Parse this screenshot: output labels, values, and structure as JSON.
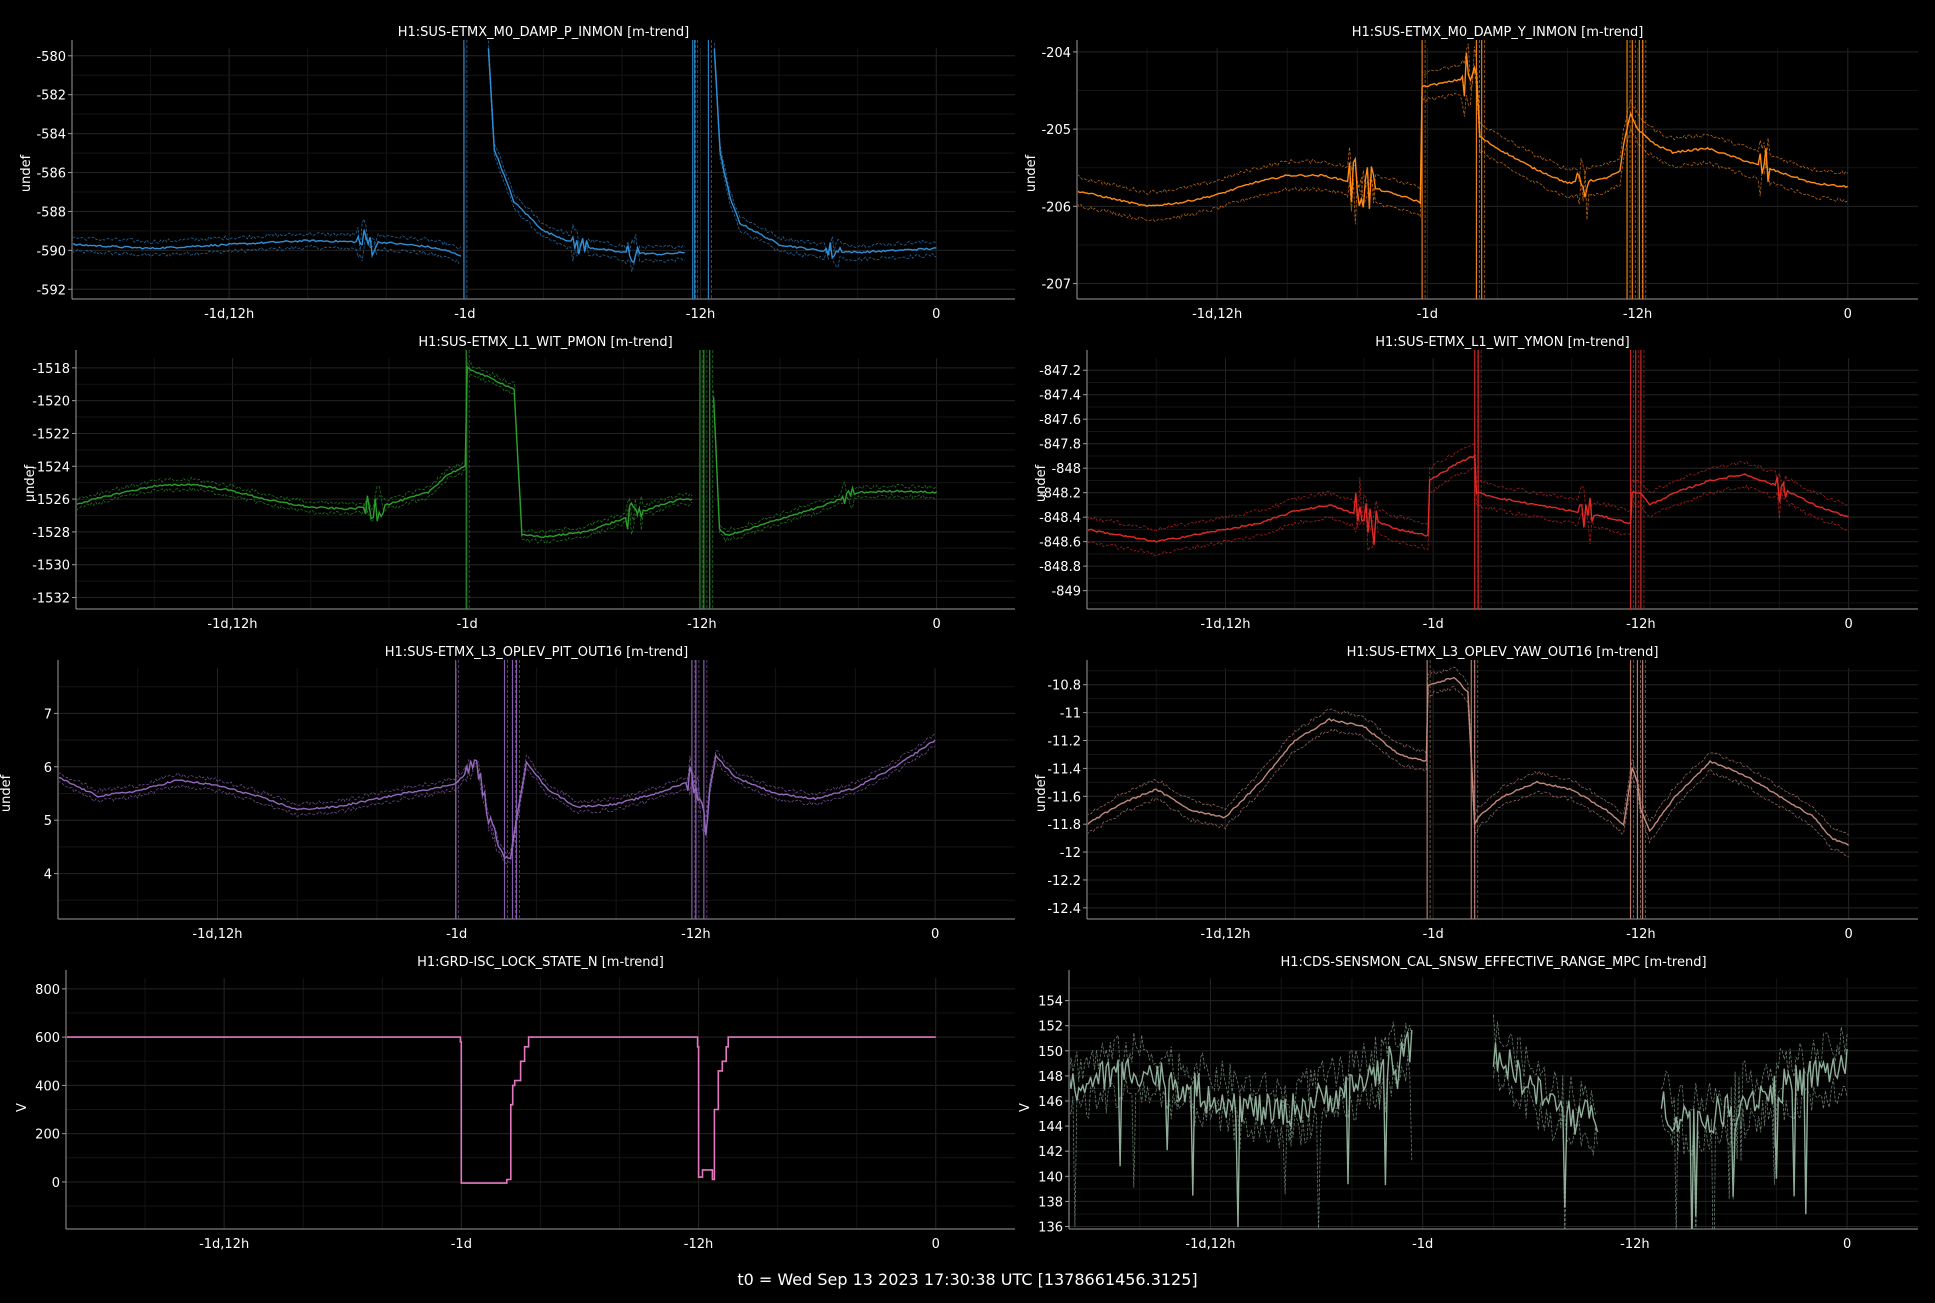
{
  "footer": "t0 = Wed Sep 13 2023 17:30:38 UTC [1378661456.3125]",
  "colors": {
    "background": "#000000",
    "grid": "#222222",
    "axis": "#9a9a9a"
  },
  "chart_data": [
    {
      "type": "line",
      "title": "H1:SUS-ETMX_M0_DAMP_P_INMON [m-trend]",
      "ylabel": "undef",
      "color": "#2f8fd6",
      "xlim": [
        -44,
        0
      ],
      "ylim": [
        -592.5,
        -579.6
      ],
      "xticks": [
        -36,
        -24,
        -12,
        0
      ],
      "xtick_labels": [
        "-1d,12h",
        "-1d",
        "-12h",
        "0"
      ],
      "yticks": [
        -580,
        -582,
        -584,
        -586,
        -588,
        -590,
        -592
      ],
      "ytick_labels": [
        "-580",
        "-582",
        "-584",
        "-586",
        "-588",
        "-590",
        "-592"
      ],
      "band": 0.35,
      "x": [
        -44,
        -40,
        -36,
        -32,
        -28,
        -26,
        -25,
        -24.1,
        -24.0,
        -22.8,
        -22.5,
        -21.5,
        -20,
        -18,
        -16,
        -14,
        -12.7,
        -12.55,
        -12.4,
        -12.3,
        -12,
        -11.3,
        -11.0,
        -10.5,
        -10,
        -8,
        -6,
        -4,
        -2,
        0
      ],
      "y": [
        -589.7,
        -589.9,
        -589.7,
        -589.5,
        -589.6,
        -589.8,
        -590,
        -590.3,
        null,
        -579.6,
        -584.8,
        -587.5,
        -589,
        -589.8,
        -590.1,
        -590.2,
        -590.1,
        null,
        -590.1,
        null,
        null,
        -579.6,
        -585.0,
        -587.3,
        -588.6,
        -589.7,
        -590.0,
        -590.1,
        -590.0,
        -589.9
      ],
      "spikes": [
        -24.05,
        -12.4,
        -12.3,
        -11.6
      ],
      "noise": [
        [
          -29.5,
          -28.5,
          1.2
        ],
        [
          -18.5,
          -17.8,
          0.9
        ],
        [
          -15.8,
          -15.2,
          1.0
        ],
        [
          -5.6,
          -4.9,
          0.8
        ]
      ]
    },
    {
      "type": "line",
      "title": "H1:SUS-ETMX_M0_DAMP_Y_INMON [m-trend]",
      "ylabel": "undef",
      "color": "#ff8a17",
      "xlim": [
        -44,
        0
      ],
      "ylim": [
        -207.2,
        -203.95
      ],
      "xticks": [
        -36,
        -24,
        -12,
        0
      ],
      "xtick_labels": [
        "-1d,12h",
        "-1d",
        "-12h",
        "0"
      ],
      "yticks": [
        -204,
        -205,
        -206,
        -207
      ],
      "ytick_labels": [
        "-204",
        "-205",
        "-206",
        "-207"
      ],
      "band": 0.18,
      "x": [
        -44,
        -42,
        -40,
        -38,
        -36,
        -34,
        -32,
        -30,
        -28,
        -26.5,
        -25,
        -24.4,
        -24.3,
        -23.0,
        -22.0,
        -21.2,
        -21.0,
        -20,
        -18,
        -16,
        -14,
        -13.0,
        -12.8,
        -12.4,
        -12.0,
        -11.5,
        -11.0,
        -10,
        -8,
        -6,
        -4,
        -2,
        0
      ],
      "y": [
        -205.8,
        -205.9,
        -206.0,
        -205.95,
        -205.85,
        -205.7,
        -205.6,
        -205.6,
        -205.7,
        -205.8,
        -205.9,
        -205.95,
        -204.45,
        -204.4,
        -204.35,
        -204.3,
        -205.1,
        -205.25,
        -205.5,
        -205.7,
        -205.65,
        -205.55,
        -205.2,
        -204.8,
        -205.0,
        -205.1,
        -205.2,
        -205.3,
        -205.25,
        -205.4,
        -205.55,
        -205.7,
        -205.75
      ],
      "spikes": [
        -24.3,
        -21.2,
        -20.9,
        -12.6,
        -12.3,
        -11.9,
        -11.7
      ],
      "noise": [
        [
          -28.5,
          -27.0,
          0.6
        ],
        [
          -22.0,
          -21.3,
          0.6
        ],
        [
          -15.5,
          -14.8,
          0.5
        ],
        [
          -5.0,
          -4.5,
          0.5
        ]
      ]
    },
    {
      "type": "line",
      "title": "H1:SUS-ETMX_L1_WIT_PMON [m-trend]",
      "ylabel": "undef",
      "color": "#2aa02b",
      "xlim": [
        -44,
        0
      ],
      "ylim": [
        -1532.7,
        -1517.4
      ],
      "xticks": [
        -36,
        -24,
        -12,
        0
      ],
      "xtick_labels": [
        "-1d,12h",
        "-1d",
        "-12h",
        "0"
      ],
      "yticks": [
        -1518,
        -1520,
        -1522,
        -1524,
        -1526,
        -1528,
        -1530,
        -1532
      ],
      "ytick_labels": [
        "-1518",
        "-1520",
        "-1522",
        "-1524",
        "-1526",
        "-1528",
        "-1530",
        "-1532"
      ],
      "band": 0.3,
      "x": [
        -44,
        -42,
        -40,
        -38,
        -36,
        -34,
        -32,
        -30,
        -28,
        -26,
        -25,
        -24.1,
        -24.0,
        -22.5,
        -21.6,
        -21.2,
        -20,
        -18,
        -16,
        -14,
        -13,
        -12.4,
        -12.2,
        -11.4,
        -11.1,
        -10.8,
        -10,
        -8,
        -6,
        -4,
        -2,
        0
      ],
      "y": [
        -1526.3,
        -1525.7,
        -1525.2,
        -1525.1,
        -1525.5,
        -1526.1,
        -1526.5,
        -1526.6,
        -1526.3,
        -1525.6,
        -1524.5,
        -1524,
        -1518.0,
        -1518.8,
        -1519.3,
        -1528.2,
        -1528.3,
        -1528.0,
        -1527.2,
        -1526.3,
        -1526,
        -1526,
        null,
        -1519.8,
        -1527.8,
        -1528.2,
        -1528.0,
        -1527.2,
        -1526.5,
        -1525.6,
        -1525.5,
        -1525.6
      ],
      "spikes": [
        -24.05,
        -12.1,
        -11.9,
        -11.6
      ],
      "noise": [
        [
          -29.2,
          -28.3,
          1.5
        ],
        [
          -15.8,
          -15.0,
          1.2
        ],
        [
          -4.8,
          -4.3,
          1.0
        ]
      ]
    },
    {
      "type": "line",
      "title": "H1:SUS-ETMX_L1_WIT_YMON [m-trend]",
      "ylabel": "undef",
      "color": "#e02a26",
      "xlim": [
        -44,
        0
      ],
      "ylim": [
        -849.15,
        -847.1
      ],
      "xticks": [
        -36,
        -24,
        -12,
        0
      ],
      "xtick_labels": [
        "-1d,12h",
        "-1d",
        "-12h",
        "0"
      ],
      "yticks": [
        -847.2,
        -847.4,
        -847.6,
        -847.8,
        -848,
        -848.2,
        -848.4,
        -848.6,
        -848.8,
        -849
      ],
      "ytick_labels": [
        "-847.2",
        "-847.4",
        "-847.6",
        "-847.8",
        "-848",
        "-848.2",
        "-848.4",
        "-848.6",
        "-848.8",
        "-849"
      ],
      "band": 0.1,
      "x": [
        -44,
        -42,
        -40,
        -38,
        -36,
        -34,
        -32,
        -30,
        -28,
        -26,
        -24.3,
        -24.2,
        -22.5,
        -21.6,
        -21.5,
        -20,
        -18,
        -16,
        -14,
        -12.6,
        -12.5,
        -12,
        -11.5,
        -10,
        -8,
        -6,
        -4,
        -2,
        0
      ],
      "y": [
        -848.5,
        -848.55,
        -848.6,
        -848.55,
        -848.5,
        -848.45,
        -848.35,
        -848.3,
        -848.4,
        -848.5,
        -848.55,
        -848.1,
        -847.95,
        -847.9,
        -848.2,
        -848.25,
        -848.3,
        -848.35,
        -848.4,
        -848.45,
        -848.2,
        -848.2,
        -848.3,
        -848.2,
        -848.1,
        -848.05,
        -848.15,
        -848.3,
        -848.4
      ],
      "spikes": [
        -21.6,
        -21.4,
        -12.6,
        -12.3,
        -12.0
      ],
      "noise": [
        [
          -28.5,
          -27.2,
          0.35
        ],
        [
          -15.6,
          -14.8,
          0.25
        ],
        [
          -4.2,
          -3.6,
          0.25
        ]
      ]
    },
    {
      "type": "line",
      "title": "H1:SUS-ETMX_L3_OPLEV_PIT_OUT16 [m-trend]",
      "ylabel": "undef",
      "color": "#9567bd",
      "xlim": [
        -44,
        0
      ],
      "ylim": [
        3.15,
        7.85
      ],
      "xticks": [
        -36,
        -24,
        -12,
        0
      ],
      "xtick_labels": [
        "-1d,12h",
        "-1d",
        "-12h",
        "0"
      ],
      "yticks": [
        7,
        6,
        5,
        4
      ],
      "ytick_labels": [
        "7",
        "6",
        "5",
        "4"
      ],
      "band": 0.1,
      "x": [
        -44,
        -42,
        -40,
        -38,
        -36,
        -34,
        -32,
        -30,
        -28,
        -26,
        -25,
        -24.0,
        -23.0,
        -22.5,
        -22.0,
        -21.6,
        -21.3,
        -21.0,
        -20.5,
        -19.5,
        -18,
        -16,
        -14,
        -12.5,
        -12.2,
        -11.5,
        -11.3,
        -11.0,
        -10.5,
        -10,
        -8,
        -6,
        -4,
        -2,
        0
      ],
      "y": [
        5.8,
        5.45,
        5.55,
        5.75,
        5.65,
        5.45,
        5.2,
        5.25,
        5.4,
        5.55,
        5.6,
        5.7,
        6.1,
        5.2,
        4.6,
        4.3,
        4.3,
        5.0,
        6.1,
        5.6,
        5.25,
        5.3,
        5.5,
        5.7,
        5.9,
        4.9,
        5.6,
        6.2,
        6.0,
        5.8,
        5.5,
        5.4,
        5.6,
        6.0,
        6.5
      ],
      "spikes": [
        -24.05,
        -21.6,
        -21.2,
        -21.0,
        -12.2,
        -12.0,
        -11.6
      ],
      "noise": [
        [
          -23.5,
          -22.0,
          0.25
        ],
        [
          -12.4,
          -11.4,
          0.4
        ]
      ]
    },
    {
      "type": "line",
      "title": "H1:SUS-ETMX_L3_OPLEV_YAW_OUT16 [m-trend]",
      "ylabel": "undef",
      "color": "#c1897a",
      "xlim": [
        -44,
        0
      ],
      "ylim": [
        -12.48,
        -10.68
      ],
      "xticks": [
        -36,
        -24,
        -12,
        0
      ],
      "xtick_labels": [
        "-1d,12h",
        "-1d",
        "-12h",
        "0"
      ],
      "yticks": [
        -10.8,
        -11,
        -11.2,
        -11.4,
        -11.6,
        -11.8,
        -12,
        -12.2,
        -12.4
      ],
      "ytick_labels": [
        "-10.8",
        "-11",
        "-11.2",
        "-11.4",
        "-11.6",
        "-11.8",
        "-12",
        "-12.2",
        "-12.4"
      ],
      "band": 0.07,
      "x": [
        -44,
        -42,
        -40,
        -38,
        -36,
        -34,
        -32,
        -30,
        -28,
        -26,
        -24.4,
        -24.3,
        -22.8,
        -22.0,
        -21.6,
        -21.4,
        -20,
        -18,
        -16,
        -14,
        -13,
        -12.5,
        -12.2,
        -12,
        -11.5,
        -10,
        -8,
        -6,
        -4,
        -2,
        -1,
        0
      ],
      "y": [
        -11.8,
        -11.65,
        -11.55,
        -11.7,
        -11.75,
        -11.5,
        -11.2,
        -11.05,
        -11.1,
        -11.3,
        -11.35,
        -10.8,
        -10.75,
        -10.85,
        -11.8,
        -11.75,
        -11.6,
        -11.5,
        -11.55,
        -11.7,
        -11.8,
        -11.4,
        -11.5,
        -11.7,
        -11.85,
        -11.6,
        -11.35,
        -11.45,
        -11.6,
        -11.75,
        -11.9,
        -11.95
      ],
      "spikes": [
        -24.35,
        -21.8,
        -21.6,
        -12.6,
        -12.2,
        -11.9
      ],
      "noise": []
    },
    {
      "type": "line",
      "title": "H1:GRD-ISC_LOCK_STATE_N [m-trend]",
      "ylabel": "V",
      "color": "#e377c2",
      "step": true,
      "xlim": [
        -44,
        0
      ],
      "ylim": [
        -195,
        845
      ],
      "xticks": [
        -36,
        -24,
        -12,
        0
      ],
      "xtick_labels": [
        "-1d,12h",
        "-1d",
        "-12h",
        "0"
      ],
      "yticks": [
        800,
        600,
        400,
        200,
        0
      ],
      "ytick_labels": [
        "800",
        "600",
        "400",
        "200",
        "0"
      ],
      "band": 0,
      "x": [
        -44,
        -24.1,
        -24.05,
        -24.0,
        -21.8,
        -21.7,
        -21.5,
        -21.4,
        -21.3,
        -21.0,
        -20.8,
        -20.6,
        -20.5,
        -12.1,
        -12.05,
        -12.0,
        -11.8,
        -11.5,
        -11.3,
        -11.2,
        -11.0,
        -10.8,
        -10.6,
        -10.5,
        0
      ],
      "y": [
        600,
        600,
        580,
        -5,
        -5,
        10,
        320,
        400,
        420,
        500,
        560,
        600,
        600,
        600,
        560,
        20,
        50,
        50,
        10,
        300,
        460,
        500,
        560,
        600,
        600
      ]
    },
    {
      "type": "line",
      "title": "H1:CDS-SENSMON_CAL_SNSW_EFFECTIVE_RANGE_MPC [m-trend]",
      "ylabel": "V",
      "color": "#8fae9a",
      "xlim": [
        -44,
        0
      ],
      "ylim": [
        135.8,
        155.8
      ],
      "xticks": [
        -36,
        -24,
        -12,
        0
      ],
      "xtick_labels": [
        "-1d,12h",
        "-1d",
        "-12h",
        "0"
      ],
      "yticks": [
        154,
        152,
        150,
        148,
        146,
        144,
        142,
        140,
        138,
        136
      ],
      "ytick_labels": [
        "154",
        "152",
        "150",
        "148",
        "146",
        "144",
        "142",
        "140",
        "138",
        "136"
      ],
      "band": 1.6,
      "noisy": 2.2,
      "x": [
        -44,
        -42,
        -40,
        -38,
        -36,
        -34,
        -32,
        -30,
        -28,
        -26,
        -24.5,
        -24.3,
        -20.0,
        -18.5,
        -17,
        -15.5,
        -14.0,
        -13.9,
        -10.5,
        -10,
        -8,
        -6,
        -4,
        -2,
        0
      ],
      "y": [
        147,
        148,
        148.5,
        147.5,
        146.5,
        145.5,
        145,
        146,
        147,
        149,
        150.5,
        null,
        150,
        148,
        146,
        145,
        144.5,
        null,
        146,
        145,
        144.5,
        146,
        147,
        148,
        149
      ],
      "spikes": [],
      "noise": []
    }
  ]
}
